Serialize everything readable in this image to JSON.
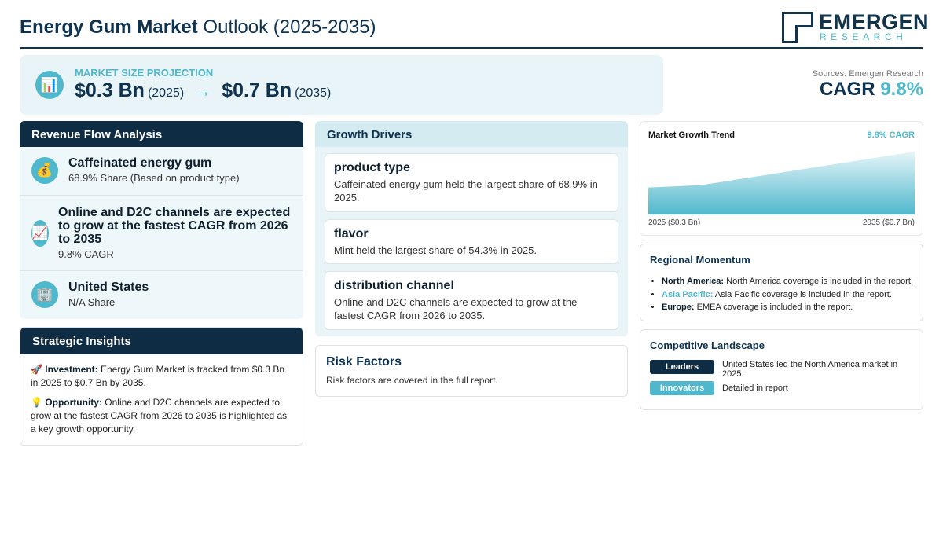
{
  "header": {
    "title_bold": "Energy Gum Market",
    "title_rest": " Outlook (2025-2035)",
    "logo_name": "EMERGEN",
    "logo_sub": "RESEARCH"
  },
  "projection": {
    "icon": "bar-chart-icon",
    "label": "MARKET SIZE PROJECTION",
    "start_value": "$0.3 Bn",
    "start_year": "(2025)",
    "arrow": "→",
    "end_value": "$0.7 Bn",
    "end_year": "(2035)"
  },
  "sources": "Sources: Emergen Research",
  "cagr": {
    "label": "CAGR",
    "value": "9.8%"
  },
  "revenue": {
    "title": "Revenue Flow Analysis",
    "items": [
      {
        "icon": "money-bag-icon",
        "title": "Caffeinated energy gum",
        "sub": "68.9% Share (Based on product type)"
      },
      {
        "icon": "chart-up-icon",
        "title": "Online and D2C channels are expected to grow at the fastest CAGR from 2026 to 2035",
        "sub": "9.8% CAGR"
      },
      {
        "icon": "building-icon",
        "title": "United States",
        "sub": "N/A Share"
      }
    ]
  },
  "strategic": {
    "title": "Strategic Insights",
    "investment_label": "Investment:",
    "investment_text": " Energy Gum Market is tracked from $0.3 Bn in 2025 to $0.7 Bn by 2035.",
    "opportunity_label": "Opportunity:",
    "opportunity_text": " Online and D2C channels are expected to grow at the fastest CAGR from 2026 to 2035 is highlighted as a key growth opportunity."
  },
  "growth": {
    "title": "Growth Drivers",
    "drivers": [
      {
        "title": "product type",
        "desc": "Caffeinated energy gum held the largest share of 68.9% in 2025."
      },
      {
        "title": "flavor",
        "desc": "Mint held the largest share of 54.3% in 2025."
      },
      {
        "title": "distribution channel",
        "desc": "Online and D2C channels are expected to grow at the fastest CAGR from 2026 to 2035."
      }
    ]
  },
  "risk": {
    "title": "Risk Factors",
    "desc": "Risk factors are covered in the full report."
  },
  "trend": {
    "title": "Market Growth Trend",
    "cagr_label": "9.8% CAGR",
    "start_label": "2025 ($0.3 Bn)",
    "end_label": "2035 ($0.7 Bn)"
  },
  "chart_data": {
    "type": "area",
    "x": [
      2025,
      2035
    ],
    "values": [
      0.3,
      0.7
    ],
    "colors": {
      "fill_top": "#e6f5f9",
      "fill_bottom": "#4fb8cc"
    }
  },
  "region": {
    "title": "Regional Momentum",
    "items": [
      {
        "name": "North America:",
        "text": " North America coverage is included in the report."
      },
      {
        "name": "Asia Pacific:",
        "text": " Asia Pacific coverage is included in the report."
      },
      {
        "name": "Europe:",
        "text": " EMEA coverage is included in the report."
      }
    ]
  },
  "competitive": {
    "title": "Competitive Landscape",
    "leaders_label": "Leaders",
    "leaders_text": "United States led the North America market in 2025.",
    "innovators_label": "Innovators",
    "innovators_text": "Detailed in report"
  },
  "colors": {
    "navy": "#0e2d45",
    "teal": "#4fb8cc",
    "light": "#e8f4f8"
  }
}
